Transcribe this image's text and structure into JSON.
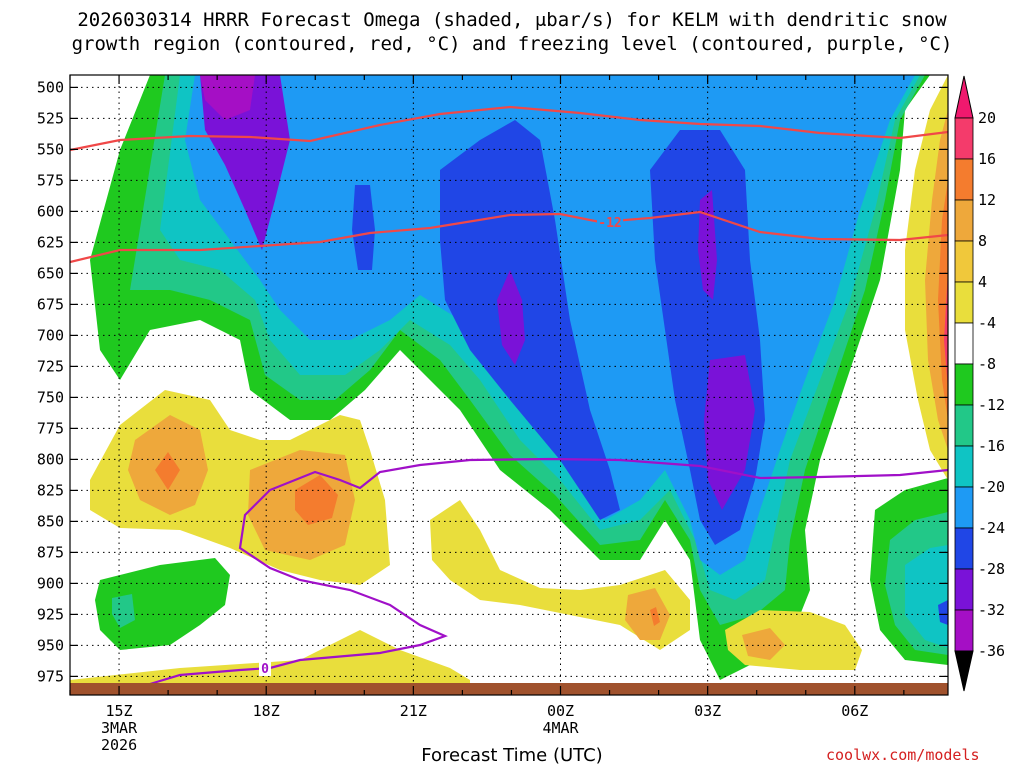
{
  "chart_data": {
    "type": "contour",
    "title": "2026030314 HRRR Forecast Omega (shaded, μbar/s) for KELM with dendritic snow",
    "subtitle": "growth region (contoured, red, °C) and freezing level (contoured, purple, °C)",
    "xlabel": "Forecast Time (UTC)",
    "credit": "coolwx.com/models",
    "y_ticks": [
      "500",
      "525",
      "550",
      "575",
      "600",
      "625",
      "650",
      "675",
      "700",
      "725",
      "750",
      "775",
      "800",
      "825",
      "850",
      "875",
      "900",
      "925",
      "950",
      "975"
    ],
    "y_values": [
      500,
      525,
      550,
      575,
      600,
      625,
      650,
      675,
      700,
      725,
      750,
      775,
      800,
      825,
      850,
      875,
      900,
      925,
      950,
      975
    ],
    "ylim": [
      990,
      490
    ],
    "x_ticks": [
      {
        "hour": 15,
        "label": "15Z",
        "date": "3MAR",
        "year": "2026"
      },
      {
        "hour": 18,
        "label": "18Z"
      },
      {
        "hour": 21,
        "label": "21Z"
      },
      {
        "hour": 24,
        "label": "00Z",
        "date": "4MAR"
      },
      {
        "hour": 27,
        "label": "03Z"
      },
      {
        "hour": 30,
        "label": "06Z"
      }
    ],
    "xlim": [
      14.0,
      31.9
    ],
    "grid": true,
    "colorbar": {
      "labels": [
        "20",
        "16",
        "12",
        "8",
        "4",
        "-4",
        "-8",
        "-12",
        "-16",
        "-20",
        "-24",
        "-28",
        "-32",
        "-36"
      ],
      "colors": [
        "#f43b6b",
        "#f47c2e",
        "#eea83b",
        "#f0c83b",
        "#e9de3c",
        "#ffffff",
        "#1fc91f",
        "#22c888",
        "#0fc4c4",
        "#1e9af4",
        "#2046e6",
        "#7a12d8",
        "#a50fc5",
        "#9b9b9b"
      ],
      "max_arrow_color": "#f0196e",
      "min_arrow_color": "#000000"
    },
    "annotations": [
      "-12",
      "0"
    ],
    "omega_colors": {
      "pos_4": "#e9de3c",
      "pos_8": "#eea83b",
      "pos_12": "#f47c2e",
      "pos_16": "#f43b6b",
      "neg_4": "#1fc91f",
      "neg_8": "#22c888",
      "neg_12": "#0fc4c4",
      "neg_16": "#1e9af4",
      "neg_20": "#2046e6",
      "neg_24": "#7a12d8",
      "neg_28": "#a50fc5"
    },
    "dgz_color": "#f04848",
    "freezing_color": "#a010c8",
    "ground_color": "#a0522d"
  }
}
